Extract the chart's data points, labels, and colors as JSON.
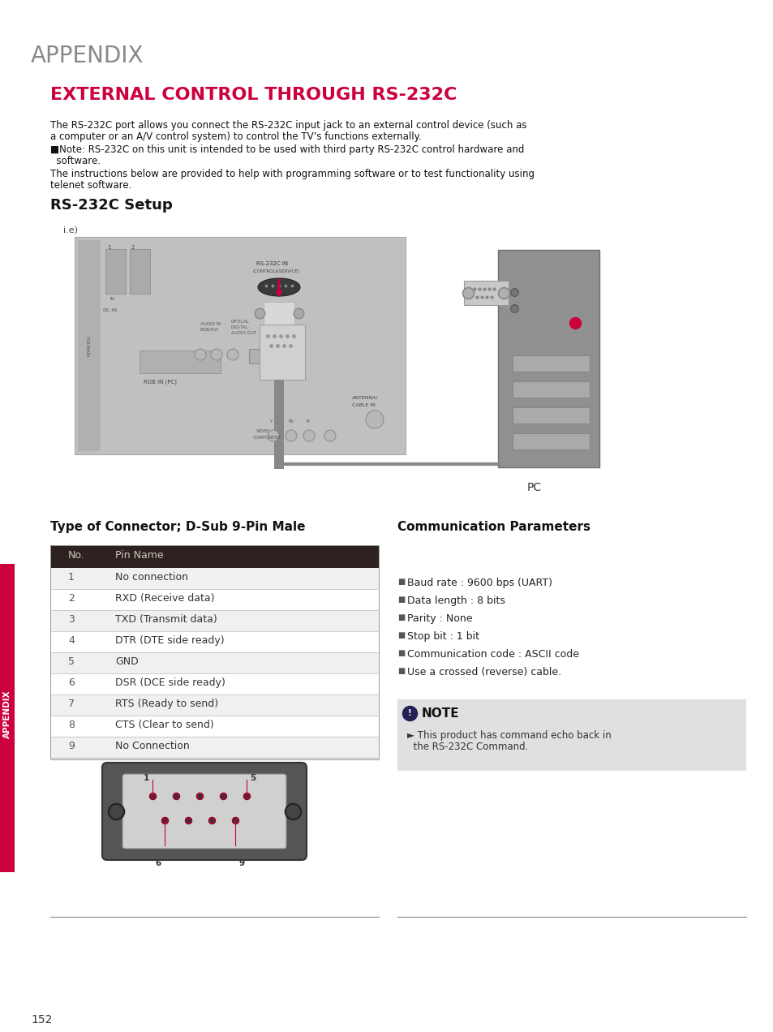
{
  "title_appendix": "APPENDIX",
  "title_main": "EXTERNAL CONTROL THROUGH RS-232C",
  "body_text1a": "The RS-232C port allows you connect the RS-232C input jack to an external control device (such as",
  "body_text1b": "a computer or an A/V control system) to control the TV’s functions externally.",
  "note_text1a": "■Note: RS-232C on this unit is intended to be used with third party RS-232C control hardware and",
  "note_text1b": "  software.",
  "body_text2a": "The instructions below are provided to help with programming software or to test functionality using",
  "body_text2b": "telenet software.",
  "setup_title": "RS-232C Setup",
  "ie_label": "i.e)",
  "pc_label": "PC",
  "connector_title": "Type of Connector; D-Sub 9-Pin Male",
  "comm_title": "Communication Parameters",
  "table_header": [
    "No.",
    "Pin Name"
  ],
  "table_rows": [
    [
      "1",
      "No connection"
    ],
    [
      "2",
      "RXD (Receive data)"
    ],
    [
      "3",
      "TXD (Transmit data)"
    ],
    [
      "4",
      "DTR (DTE side ready)"
    ],
    [
      "5",
      "GND"
    ],
    [
      "6",
      "DSR (DCE side ready)"
    ],
    [
      "7",
      "RTS (Ready to send)"
    ],
    [
      "8",
      "CTS (Clear to send)"
    ],
    [
      "9",
      "No Connection"
    ]
  ],
  "comm_params": [
    "Baud rate : 9600 bps (UART)",
    "Data length : 8 bits",
    "Parity : None",
    "Stop bit : 1 bit",
    "Communication code : ASCII code",
    "Use a crossed (reverse) cable."
  ],
  "note_box_title": "NOTE",
  "note_box_text1": "► This product has command echo back in",
  "note_box_text2": "  the RS-232C Command.",
  "page_number": "152",
  "appendix_sidebar": "APPENDIX",
  "bg_color": "#ffffff",
  "title_color": "#cc003d",
  "appendix_title_color": "#888888",
  "header_bg": "#2d2220",
  "header_text_color": "#d0c8c0",
  "note_bg": "#e0e0e0",
  "sidebar_bg": "#cc003d",
  "table_line_color": "#bbbbbb",
  "diagram_bg": "#c8c8c8",
  "tv_panel_bg": "#c0c0c0",
  "pc_bg": "#888888"
}
